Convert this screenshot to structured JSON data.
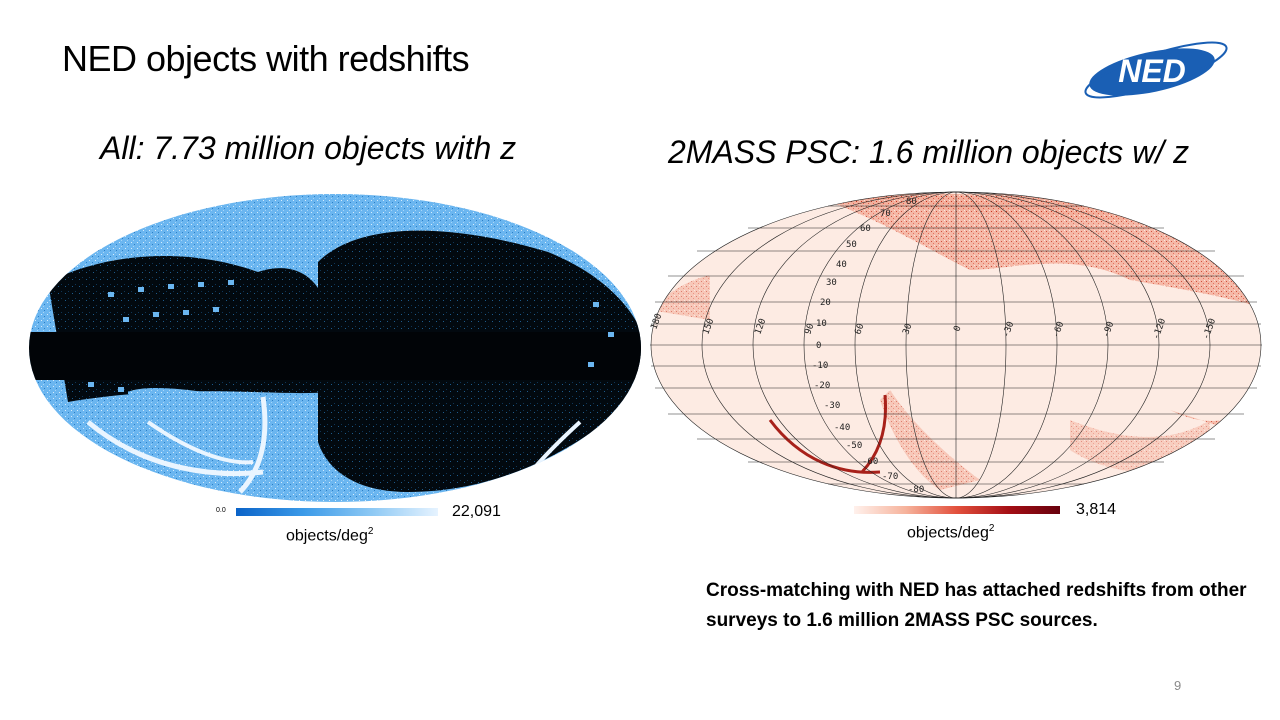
{
  "slide": {
    "title": "NED objects with redshifts",
    "page_number": "9",
    "logo_text": "NED"
  },
  "left_panel": {
    "title": "All: 7.73 million objects with z",
    "colorbar": {
      "min_label": "0.0",
      "max_label": "22,091",
      "unit": "objects/deg",
      "unit_sup": "2",
      "colormap": "blues"
    },
    "colors": {
      "bright": "#6bb6f0",
      "dark": "#02090f"
    }
  },
  "right_panel": {
    "title": "2MASS PSC: 1.6 million objects w/ z",
    "colorbar": {
      "max_label": "3,814",
      "unit": "objects/deg",
      "unit_sup": "2",
      "colormap": "reds"
    },
    "colors": {
      "background": "#fdebe3",
      "density": "#c8331f"
    },
    "longitude_labels": [
      "180",
      "150",
      "120",
      "90",
      "60",
      "30",
      "0",
      "-30",
      "-60",
      "-90",
      "-120",
      "-150"
    ],
    "latitude_labels": [
      "80",
      "70",
      "60",
      "50",
      "40",
      "30",
      "20",
      "10",
      "0",
      "-10",
      "-20",
      "-30",
      "-40",
      "-50",
      "-60",
      "-70",
      "-80"
    ]
  },
  "note": "Cross-matching with NED has attached redshifts from other surveys to 1.6 million 2MASS PSC sources."
}
